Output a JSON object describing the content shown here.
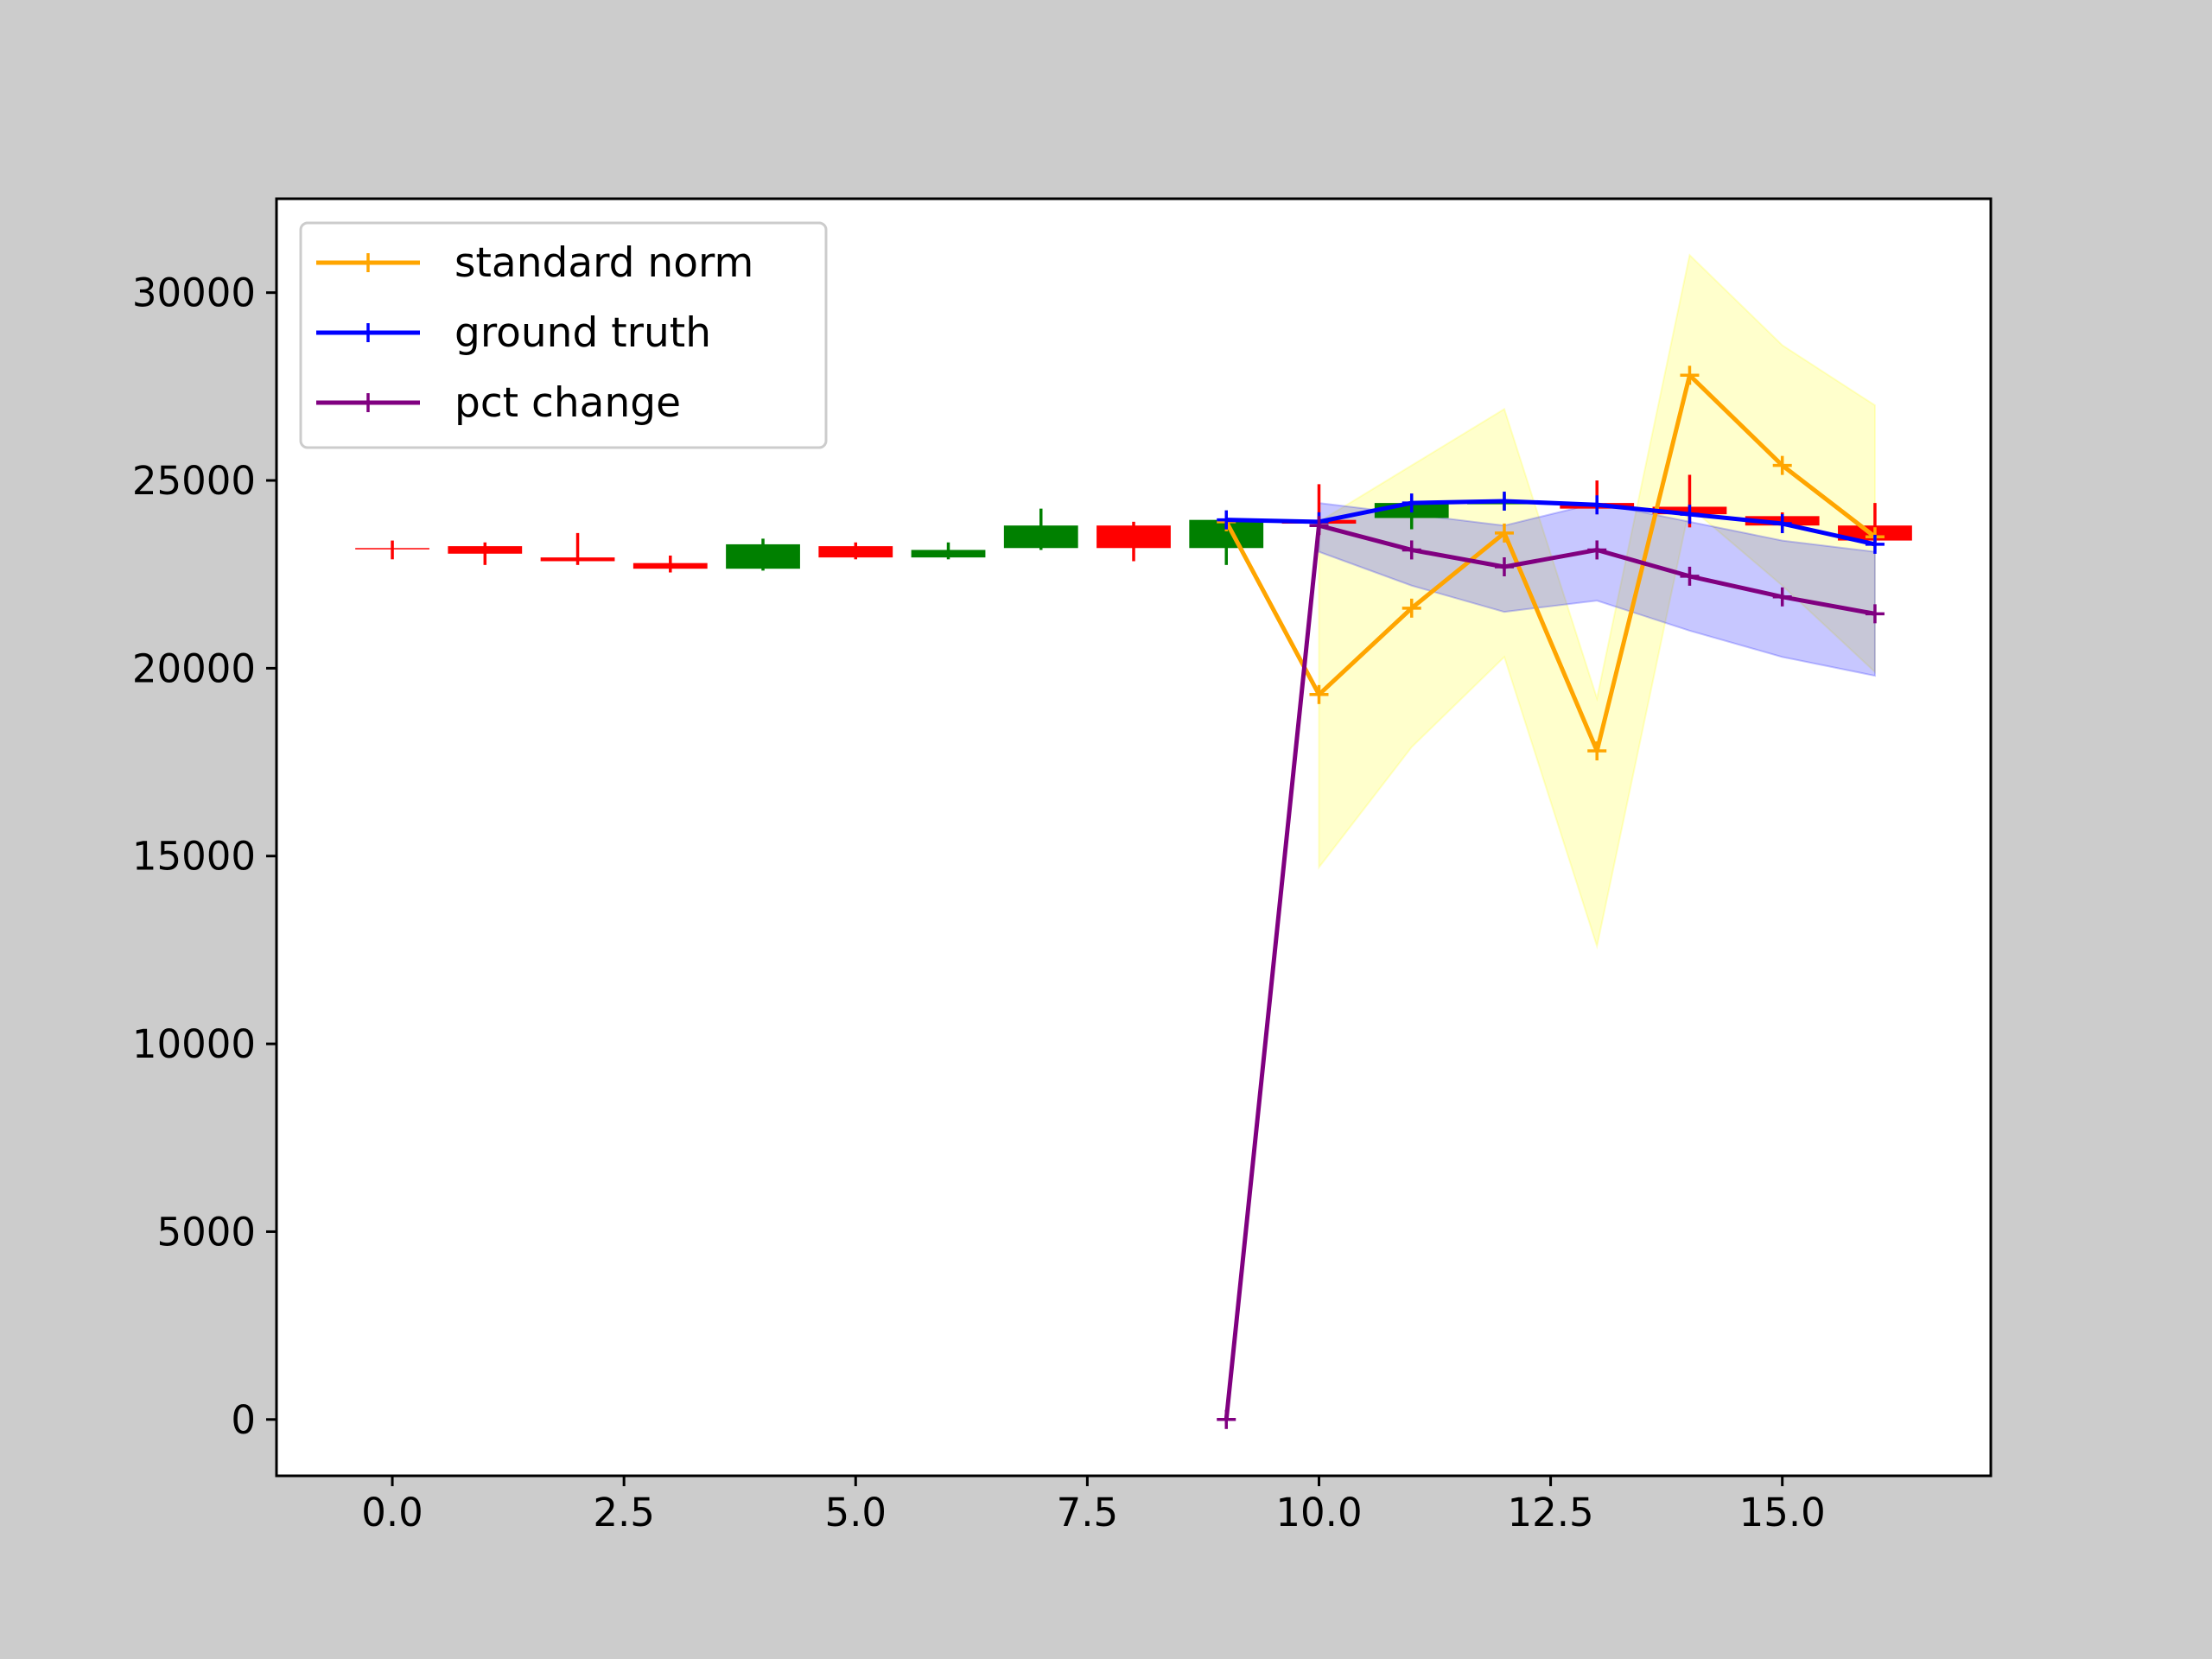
{
  "figure": {
    "background": "#cccccc",
    "axes_background": "#ffffff"
  },
  "chart_data": {
    "type": "line",
    "title": "",
    "xlabel": "",
    "ylabel": "",
    "xlim": [
      -1.25,
      17.25
    ],
    "ylim": [
      -1500,
      32500
    ],
    "xticks": [
      0.0,
      2.5,
      5.0,
      7.5,
      10.0,
      12.5,
      15.0
    ],
    "xtick_labels": [
      "0.0",
      "2.5",
      "5.0",
      "7.5",
      "10.0",
      "12.5",
      "15.0"
    ],
    "yticks": [
      0,
      5000,
      10000,
      15000,
      20000,
      25000,
      30000
    ],
    "ytick_labels": [
      "0",
      "5000",
      "10000",
      "15000",
      "20000",
      "25000",
      "30000"
    ],
    "grid": false,
    "legend": {
      "position": "upper-left",
      "entries": [
        {
          "label": "standard norm",
          "color": "#ffa500"
        },
        {
          "label": "ground truth",
          "color": "#0000ff"
        },
        {
          "label": "pct change",
          "color": "#800080"
        }
      ]
    },
    "candlesticks": [
      {
        "x": 0,
        "open": 23200,
        "close": 23200,
        "high": 23400,
        "low": 22900,
        "color": "#ff0000"
      },
      {
        "x": 1,
        "open": 23250,
        "close": 23050,
        "high": 23350,
        "low": 22750,
        "color": "#ff0000"
      },
      {
        "x": 2,
        "open": 22950,
        "close": 22850,
        "high": 23600,
        "low": 22750,
        "color": "#ff0000"
      },
      {
        "x": 3,
        "open": 22800,
        "close": 22650,
        "high": 23000,
        "low": 22550,
        "color": "#ff0000"
      },
      {
        "x": 4,
        "open": 22650,
        "close": 23300,
        "high": 23450,
        "low": 22600,
        "color": "#008000"
      },
      {
        "x": 5,
        "open": 23250,
        "close": 22950,
        "high": 23350,
        "low": 22900,
        "color": "#ff0000"
      },
      {
        "x": 6,
        "open": 22950,
        "close": 23150,
        "high": 23350,
        "low": 22900,
        "color": "#008000"
      },
      {
        "x": 7,
        "open": 23200,
        "close": 23800,
        "high": 24250,
        "low": 23150,
        "color": "#008000"
      },
      {
        "x": 8,
        "open": 23800,
        "close": 23200,
        "high": 23900,
        "low": 22850,
        "color": "#ff0000"
      },
      {
        "x": 9,
        "open": 23200,
        "close": 23950,
        "high": 24200,
        "low": 22750,
        "color": "#008000"
      },
      {
        "x": 10,
        "open": 23950,
        "close": 23850,
        "high": 24900,
        "low": 23550,
        "color": "#ff0000"
      },
      {
        "x": 11,
        "open": 24000,
        "close": 24400,
        "high": 24550,
        "low": 23700,
        "color": "#008000"
      },
      {
        "x": 12,
        "open": 24400,
        "close": 24400,
        "high": 24650,
        "low": 24200,
        "color": "#008000"
      },
      {
        "x": 13,
        "open": 24400,
        "close": 24250,
        "high": 25000,
        "low": 24100,
        "color": "#ff0000"
      },
      {
        "x": 14,
        "open": 24300,
        "close": 24100,
        "high": 25150,
        "low": 23750,
        "color": "#ff0000"
      },
      {
        "x": 15,
        "open": 24050,
        "close": 23800,
        "high": 24150,
        "low": 23600,
        "color": "#ff0000"
      },
      {
        "x": 16,
        "open": 23800,
        "close": 23400,
        "high": 24400,
        "low": 23300,
        "color": "#ff0000"
      }
    ],
    "bands": [
      {
        "name_ref": "standard norm",
        "color": "#ffff00",
        "opacity": 0.2,
        "x": [
          10,
          11,
          12,
          13,
          14,
          15,
          16
        ],
        "upper": [
          23900,
          25400,
          26900,
          19200,
          31000,
          28600,
          27000
        ],
        "lower": [
          14700,
          17900,
          20300,
          12600,
          24300,
          22200,
          19900
        ]
      },
      {
        "name_ref": "pct change",
        "color": "#0000ff",
        "opacity": 0.22,
        "x": [
          10,
          11,
          12,
          13,
          14,
          15,
          16
        ],
        "upper": [
          24400,
          24100,
          23800,
          24400,
          23900,
          23400,
          23100
        ],
        "lower": [
          23100,
          22200,
          21500,
          21800,
          21000,
          20300,
          19800
        ]
      }
    ],
    "series": [
      {
        "name": "standard norm",
        "color": "#ffa500",
        "marker": "+",
        "x": [
          9,
          10,
          11,
          12,
          13,
          14,
          15,
          16
        ],
        "y": [
          23900,
          19300,
          21600,
          23600,
          17800,
          27800,
          25400,
          23500
        ]
      },
      {
        "name": "ground truth",
        "color": "#0000ff",
        "marker": "+",
        "x": [
          9,
          10,
          11,
          12,
          13,
          14,
          15,
          16
        ],
        "y": [
          23950,
          23900,
          24400,
          24450,
          24350,
          24100,
          23850,
          23300
        ]
      },
      {
        "name": "pct change",
        "color": "#800080",
        "marker": "+",
        "x": [
          9,
          10,
          11,
          12,
          13,
          14,
          15,
          16
        ],
        "y": [
          0,
          23800,
          23150,
          22700,
          23150,
          22450,
          21900,
          21450
        ]
      }
    ]
  }
}
